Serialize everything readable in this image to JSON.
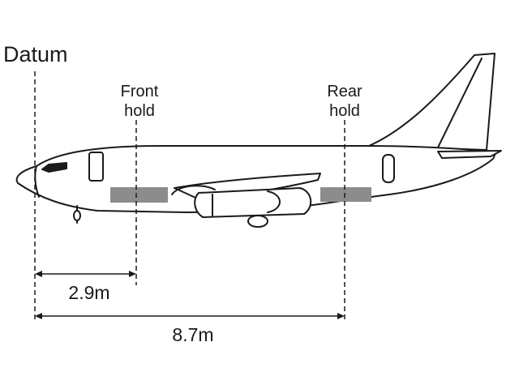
{
  "diagram": {
    "datum_label": "Datum",
    "front_hold_label": [
      "Front",
      "hold"
    ],
    "rear_hold_label": [
      "Rear",
      "hold"
    ],
    "front_hold_distance": "2.9m",
    "rear_hold_distance": "8.7m"
  },
  "colors": {
    "outline": "#1a1a1a",
    "hold_fill": "#8c8c8c",
    "background": "#ffffff"
  }
}
